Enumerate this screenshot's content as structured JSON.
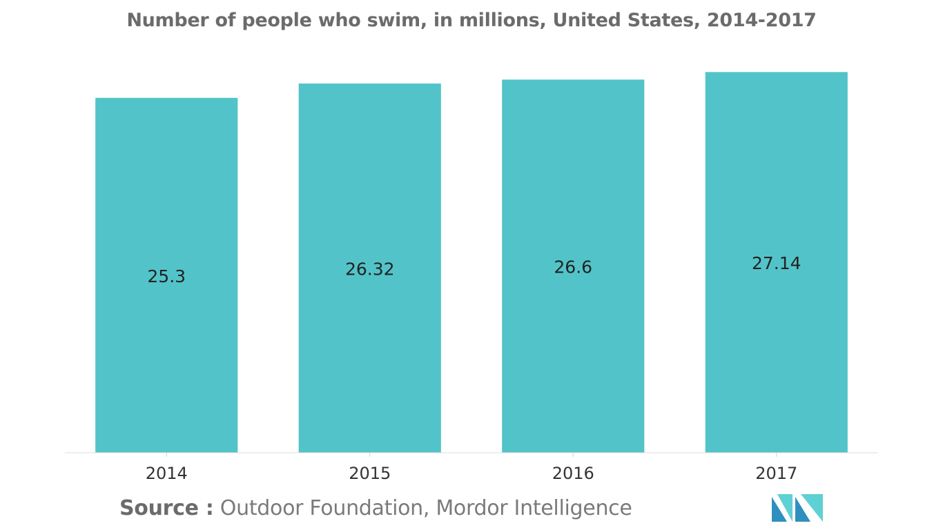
{
  "chart_data": {
    "type": "bar",
    "title": "Number of people who swim, in millions, United States, 2014-2017",
    "categories": [
      "2014",
      "2015",
      "2016",
      "2017"
    ],
    "values": [
      25.3,
      26.32,
      26.6,
      27.14
    ],
    "value_labels": [
      "25.3",
      "26.32",
      "26.6",
      "27.14"
    ],
    "xlabel": "",
    "ylabel": "",
    "ylim": [
      0,
      27.7
    ],
    "grid": false,
    "legend": "none",
    "bar_color": "#52c4c9"
  },
  "source": {
    "label": "Source :",
    "text": "Outdoor Foundation, Mordor Intelligence"
  },
  "logo": {
    "icon": "mordor-intelligence-logo-icon",
    "colors": [
      "#2f8fbf",
      "#5fd0d4"
    ]
  }
}
